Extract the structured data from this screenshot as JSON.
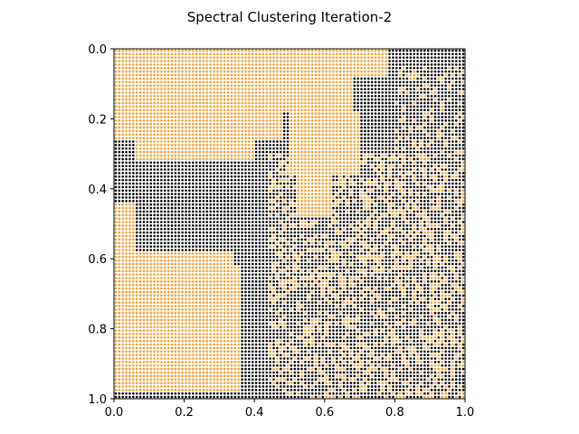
{
  "chart_data": {
    "type": "scatter",
    "title": "Spectral Clustering Iteration-2",
    "xlabel": "",
    "ylabel": "",
    "xlim": [
      0.0,
      1.0
    ],
    "ylim": [
      1.0,
      0.0
    ],
    "y_axis_inverted": true,
    "grid": false,
    "grid_points_per_side": 100,
    "x_ticks": [
      "0.0",
      "0.2",
      "0.4",
      "0.6",
      "0.8",
      "1.0"
    ],
    "y_ticks": [
      "0.0",
      "0.2",
      "0.4",
      "0.6",
      "0.8",
      "1.0"
    ],
    "series": [
      {
        "cluster": 0,
        "color": "#f0a030",
        "regions": [
          {
            "x": [
              0.0,
              0.78
            ],
            "y": [
              0.0,
              0.08
            ]
          },
          {
            "x": [
              0.0,
              0.68
            ],
            "y": [
              0.08,
              0.18
            ]
          },
          {
            "x": [
              0.0,
              0.48
            ],
            "y": [
              0.18,
              0.26
            ]
          },
          {
            "x": [
              0.06,
              0.4
            ],
            "y": [
              0.26,
              0.32
            ]
          },
          {
            "x": [
              0.5,
              0.7
            ],
            "y": [
              0.18,
              0.36
            ]
          },
          {
            "x": [
              0.52,
              0.62
            ],
            "y": [
              0.36,
              0.48
            ]
          },
          {
            "x": [
              0.0,
              0.06
            ],
            "y": [
              0.44,
              0.98
            ]
          },
          {
            "x": [
              0.06,
              0.34
            ],
            "y": [
              0.58,
              0.8
            ]
          },
          {
            "x": [
              0.18,
              0.36
            ],
            "y": [
              0.62,
              0.98
            ]
          },
          {
            "x": [
              0.06,
              0.18
            ],
            "y": [
              0.8,
              0.98
            ]
          }
        ],
        "noise_regions": [
          {
            "x": [
              0.44,
              1.0
            ],
            "y": [
              0.3,
              1.0
            ],
            "density": 0.3
          },
          {
            "x": [
              0.8,
              1.0
            ],
            "y": [
              0.05,
              0.3
            ],
            "density": 0.22
          }
        ]
      },
      {
        "cluster": 1,
        "color": "#000000",
        "note": "remaining grid points"
      }
    ]
  }
}
